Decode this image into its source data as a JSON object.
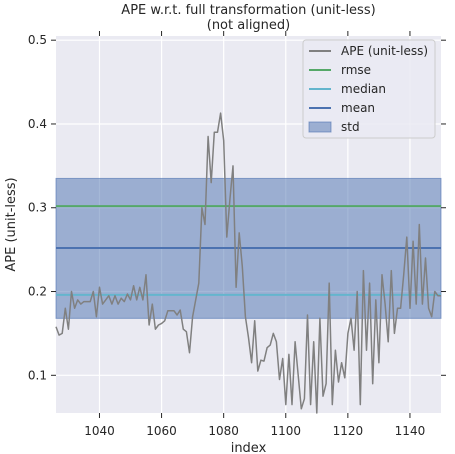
{
  "chart_data": {
    "type": "line",
    "title": "APE w.r.t. full transformation (unit-less)\n(not aligned)",
    "title_lines": [
      "APE w.r.t. full transformation (unit-less)",
      "(not aligned)"
    ],
    "xlabel": "index",
    "ylabel": "APE (unit-less)",
    "xlim": [
      1026,
      1150
    ],
    "ylim": [
      0.055,
      0.505
    ],
    "x_ticks": [
      1040,
      1060,
      1080,
      1100,
      1120,
      1140
    ],
    "y_ticks": [
      0.1,
      0.2,
      0.3,
      0.4,
      0.5
    ],
    "grid": true,
    "legend_position": "top-right",
    "series": [
      {
        "name": "APE (unit-less)",
        "color": "#808080",
        "x_start": 1026,
        "x_step": 1,
        "values": [
          0.158,
          0.148,
          0.15,
          0.18,
          0.155,
          0.2,
          0.18,
          0.19,
          0.185,
          0.188,
          0.188,
          0.188,
          0.2,
          0.17,
          0.205,
          0.185,
          0.19,
          0.195,
          0.185,
          0.195,
          0.185,
          0.192,
          0.188,
          0.197,
          0.19,
          0.207,
          0.19,
          0.205,
          0.19,
          0.22,
          0.16,
          0.185,
          0.155,
          0.16,
          0.162,
          0.165,
          0.177,
          0.177,
          0.177,
          0.172,
          0.178,
          0.155,
          0.152,
          0.127,
          0.17,
          0.19,
          0.21,
          0.3,
          0.28,
          0.385,
          0.33,
          0.39,
          0.39,
          0.413,
          0.38,
          0.265,
          0.31,
          0.35,
          0.205,
          0.27,
          0.23,
          0.17,
          0.145,
          0.115,
          0.165,
          0.105,
          0.118,
          0.117,
          0.133,
          0.136,
          0.15,
          0.14,
          0.095,
          0.12,
          0.065,
          0.125,
          0.065,
          0.14,
          0.1,
          0.06,
          0.072,
          0.172,
          0.065,
          0.14,
          0.055,
          0.168,
          0.075,
          0.09,
          0.21,
          0.065,
          0.13,
          0.092,
          0.115,
          0.097,
          0.15,
          0.168,
          0.13,
          0.2,
          0.065,
          0.225,
          0.13,
          0.21,
          0.09,
          0.19,
          0.115,
          0.22,
          0.185,
          0.14,
          0.225,
          0.15,
          0.18,
          0.18,
          0.22,
          0.265,
          0.18,
          0.26,
          0.185,
          0.28,
          0.185,
          0.24,
          0.18,
          0.17,
          0.2,
          0.195,
          0.195
        ]
      },
      {
        "name": "rmse",
        "color": "#55a868",
        "value": 0.302
      },
      {
        "name": "median",
        "color": "#64b5cd",
        "value": 0.196
      },
      {
        "name": "mean",
        "color": "#4c72b0",
        "value": 0.252
      },
      {
        "name": "std",
        "color": "#4c72b0",
        "range": [
          0.168,
          0.335
        ]
      }
    ]
  }
}
